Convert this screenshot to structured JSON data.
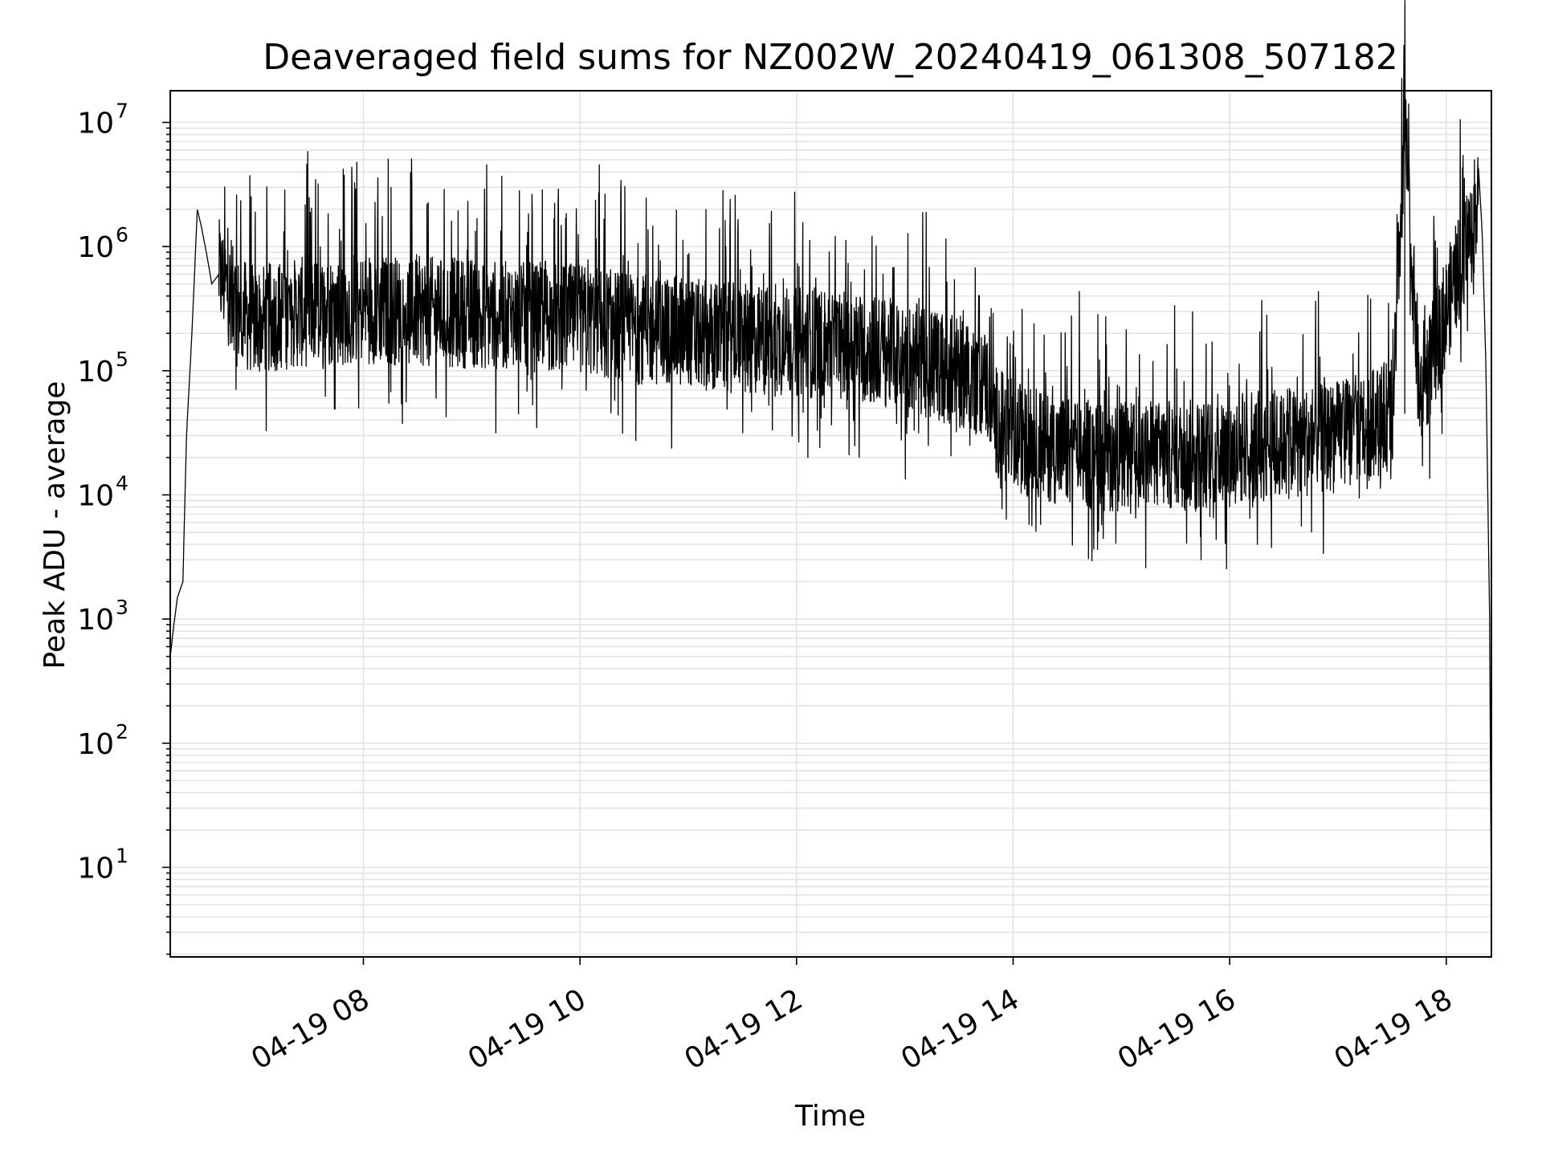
{
  "chart_data": {
    "type": "line",
    "title": "Deaveraged field sums for NZ002W_20240419_061308_507182",
    "xlabel": "Time",
    "ylabel": "Peak ADU - average",
    "yscale": "log",
    "grid": true,
    "xlim": [
      "2024-04-19 06:13",
      "2024-04-19 18:25"
    ],
    "ylim": [
      1.9,
      18000000
    ],
    "x_ticks": [
      {
        "value": "2024-04-19 08:00",
        "label": "04-19 08"
      },
      {
        "value": "2024-04-19 10:00",
        "label": "04-19 10"
      },
      {
        "value": "2024-04-19 12:00",
        "label": "04-19 12"
      },
      {
        "value": "2024-04-19 14:00",
        "label": "04-19 14"
      },
      {
        "value": "2024-04-19 16:00",
        "label": "04-19 16"
      },
      {
        "value": "2024-04-19 18:00",
        "label": "04-19 18"
      }
    ],
    "y_ticks": [
      {
        "value": 10,
        "base": "10",
        "exp": "1"
      },
      {
        "value": 100,
        "base": "10",
        "exp": "2"
      },
      {
        "value": 1000,
        "base": "10",
        "exp": "3"
      },
      {
        "value": 10000,
        "base": "10",
        "exp": "4"
      },
      {
        "value": 100000,
        "base": "10",
        "exp": "5"
      },
      {
        "value": 1000000,
        "base": "10",
        "exp": "6"
      },
      {
        "value": 10000000,
        "base": "10",
        "exp": "7"
      }
    ],
    "line_color": "#000000",
    "grid_color": "#e3e3e3",
    "series": [
      {
        "x": [
          "2024-04-19 06:13",
          "2024-04-19 06:15",
          "2024-04-19 06:17",
          "2024-04-19 06:20",
          "2024-04-19 06:22",
          "2024-04-19 06:25",
          "2024-04-19 06:28",
          "2024-04-19 06:30",
          "2024-04-19 06:33",
          "2024-04-19 06:36",
          "2024-04-19 06:40",
          "2024-04-19 06:45",
          "2024-04-19 06:50",
          "2024-04-19 07:00",
          "2024-04-19 07:15",
          "2024-04-19 07:30",
          "2024-04-19 07:45",
          "2024-04-19 08:00",
          "2024-04-19 08:30",
          "2024-04-19 09:00",
          "2024-04-19 09:30",
          "2024-04-19 10:00",
          "2024-04-19 10:30",
          "2024-04-19 11:00",
          "2024-04-19 11:30",
          "2024-04-19 12:00",
          "2024-04-19 12:30",
          "2024-04-19 13:00",
          "2024-04-19 13:30",
          "2024-04-19 13:45",
          "2024-04-19 13:50",
          "2024-04-19 14:00",
          "2024-04-19 14:30",
          "2024-04-19 15:00",
          "2024-04-19 15:30",
          "2024-04-19 16:00",
          "2024-04-19 16:30",
          "2024-04-19 17:00",
          "2024-04-19 17:15",
          "2024-04-19 17:30",
          "2024-04-19 17:37",
          "2024-04-19 17:45",
          "2024-04-19 18:00",
          "2024-04-19 18:10",
          "2024-04-19 18:15",
          "2024-04-19 18:18",
          "2024-04-19 18:20",
          "2024-04-19 18:22",
          "2024-04-19 18:24",
          "2024-04-19 18:25"
        ],
        "y": [
          500,
          900,
          1500,
          2000,
          30000,
          200000,
          2000000,
          1500000,
          900000,
          500000,
          600000,
          450000,
          300000,
          250000,
          280000,
          300000,
          310000,
          320000,
          300000,
          290000,
          270000,
          260000,
          220000,
          200000,
          180000,
          170000,
          160000,
          130000,
          100000,
          80000,
          40000,
          30000,
          22000,
          20000,
          21000,
          22000,
          25000,
          30000,
          35000,
          45000,
          9000000,
          60000,
          300000,
          1000000,
          1500000,
          4000000,
          1200000,
          100000,
          1000,
          4
        ]
      }
    ]
  }
}
